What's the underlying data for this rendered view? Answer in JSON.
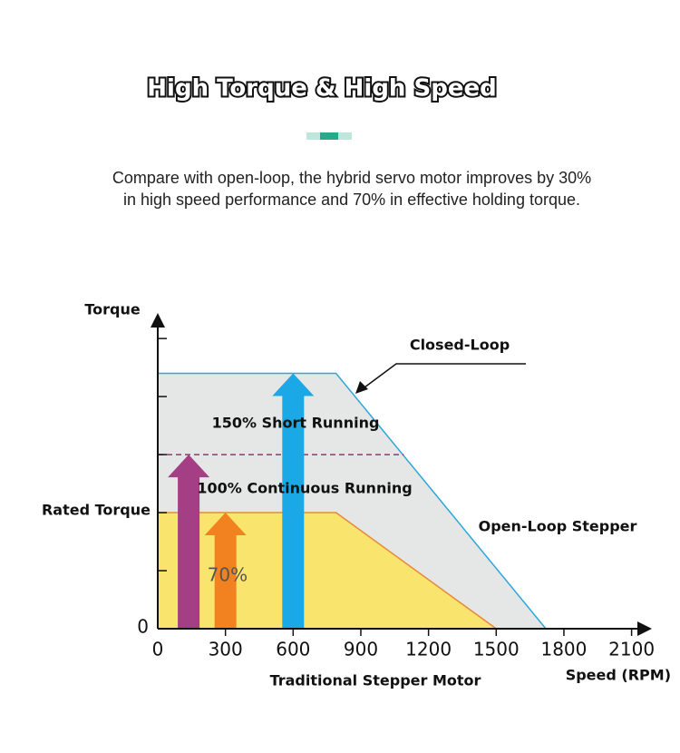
{
  "chart_data": {
    "type": "area",
    "title": "High Torque & High Speed",
    "subtitle": [
      "Compare with open-loop, the hybrid servo motor improves by 30%",
      "in high speed performance and 70% in effective holding torque."
    ],
    "y_label": "Torque",
    "x_label": "Speed (RPM)",
    "xlim": [
      0,
      2190
    ],
    "xticks": [
      0,
      300,
      600,
      900,
      1200,
      1500,
      1800,
      2100
    ],
    "ylim": [
      0,
      272
    ],
    "yticks": [
      0,
      {
        "value": 100,
        "label": "Rated Torque"
      }
    ],
    "y_minor_ticks": [
      50,
      150,
      200,
      250
    ],
    "series": [
      {
        "name": "Closed-Loop",
        "color": "#2ea7d8",
        "fill": "#e5e6e6",
        "x": [
          0,
          790,
          1720
        ],
        "values": [
          220,
          220,
          0
        ]
      },
      {
        "name": "Open-Loop Stepper",
        "color": "#e8883a",
        "fill": "#f9e56e",
        "x": [
          0,
          790,
          1500
        ],
        "values": [
          100,
          100,
          0
        ]
      }
    ],
    "reference_line": {
      "value": 150,
      "x": [
        0,
        1090
      ],
      "color": "#8e3b6e"
    },
    "arrows": [
      {
        "x": 137,
        "value": 150,
        "color": "#a43f85"
      },
      {
        "x": 300,
        "value": 100,
        "color": "#f2821f",
        "label": "70%"
      },
      {
        "x": 600,
        "value": 220,
        "color": "#1aa9e6"
      }
    ],
    "annotations": [
      "150% Short Running",
      "100% Continuous Running",
      "Traditional Stepper Motor"
    ]
  }
}
